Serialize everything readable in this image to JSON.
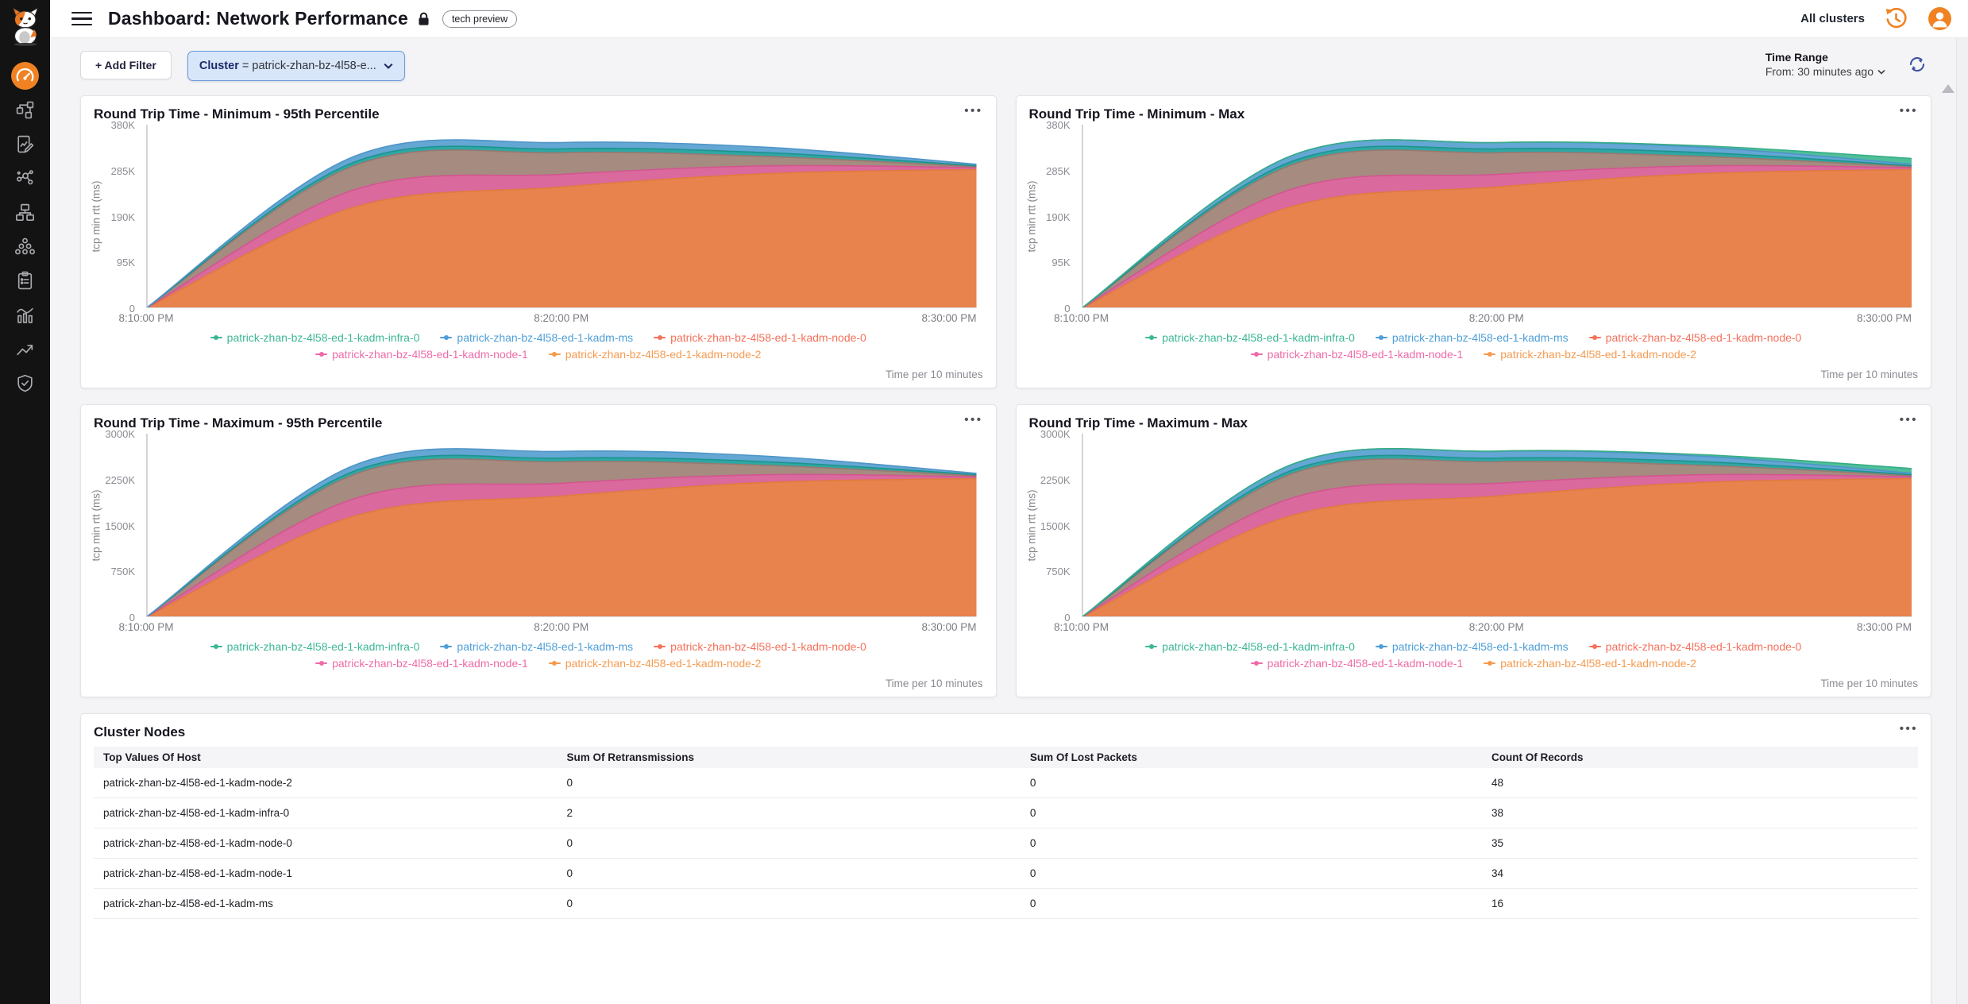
{
  "app": {
    "title": "Dashboard: Network Performance",
    "badge": "tech preview",
    "cluster_scope": "All clusters"
  },
  "sidebar": {
    "icons": [
      "mascot-logo",
      "gauge-dashboard",
      "topology",
      "form-edit",
      "molecule",
      "sitemap",
      "cluster-nodes",
      "clipboard",
      "analytics",
      "trend-up",
      "shield-check"
    ],
    "active_icon": "gauge-dashboard"
  },
  "filter_bar": {
    "add_filter_label": "+ Add Filter",
    "cluster_filter": {
      "field": "Cluster",
      "condition": "= patrick-zhan-bz-4l58-e..."
    },
    "time_range": {
      "label": "Time Range",
      "from": "From: 30 minutes ago"
    }
  },
  "icons": {
    "menu": "hamburger",
    "lock": "lock",
    "history": "clock-restore",
    "avatar": "person-circle",
    "refresh": "circular-arrows",
    "panel_menu": "ellipsis-h",
    "chevron": "chevron-down",
    "scroll_up": "triangle-up"
  },
  "colors": {
    "accent_orange": "#F08223",
    "filter_pill_bg": "#D8E6F9",
    "filter_pill_border": "#6D9CD8",
    "sidebar_bg": "#131313",
    "page_bg": "#F4F4F6"
  },
  "series_legend": [
    {
      "label": "patrick-zhan-bz-4l58-ed-1-kadm-infra-0",
      "color": "#3cb795"
    },
    {
      "label": "patrick-zhan-bz-4l58-ed-1-kadm-ms",
      "color": "#4e9fd8"
    },
    {
      "label": "patrick-zhan-bz-4l58-ed-1-kadm-node-0",
      "color": "#f4715b"
    },
    {
      "label": "patrick-zhan-bz-4l58-ed-1-kadm-node-1",
      "color": "#ef6ba8"
    },
    {
      "label": "patrick-zhan-bz-4l58-ed-1-kadm-node-2",
      "color": "#f59b50"
    }
  ],
  "charts": [
    {
      "type": "area",
      "title": "Round Trip Time - Minimum - 95th Percentile",
      "ylabel": "tcp min rtt (ms)",
      "ymax": 380,
      "value_unit": "K",
      "yticks": [
        "380K",
        "285K",
        "190K",
        "95K",
        "0"
      ],
      "xticks": [
        "8:10:00 PM",
        "8:20:00 PM",
        "8:30:00 PM"
      ],
      "x_samples": [
        "8:10 PM",
        "8:15 PM",
        "8:20 PM",
        "8:25 PM",
        "8:30 PM"
      ],
      "footer": "Time per 10 minutes",
      "bands": [
        {
          "series": "kadm-node-2",
          "fill": "#E8834E",
          "line": "#E07A3F",
          "values": [
            0,
            209,
            251,
            279,
            287
          ]
        },
        {
          "series": "kadm-node-1",
          "fill": "#DA699E",
          "line": "#D2568F",
          "values": [
            0,
            245,
            277,
            295,
            291
          ]
        },
        {
          "series": "kadm-node-0 overlap",
          "fill": "#A68B80",
          "line": "#98796F",
          "values": [
            0,
            295,
            322,
            314,
            293
          ]
        },
        {
          "series": "kadm-infra-0 overlap",
          "fill": "#2FA7A4",
          "line": "#1E938F",
          "values": [
            0,
            302,
            330,
            322,
            295
          ]
        },
        {
          "series": "kadm-ms overlap",
          "fill": "#64A7D4",
          "line": "#4E95C7",
          "values": [
            0,
            314,
            343,
            333,
            298
          ]
        }
      ]
    },
    {
      "type": "area",
      "title": "Round Trip Time - Minimum - Max",
      "ylabel": "tcp min rtt (ms)",
      "ymax": 380,
      "value_unit": "K",
      "yticks": [
        "380K",
        "285K",
        "190K",
        "95K",
        "0"
      ],
      "xticks": [
        "8:10:00 PM",
        "8:20:00 PM",
        "8:30:00 PM"
      ],
      "x_samples": [
        "8:10 PM",
        "8:15 PM",
        "8:20 PM",
        "8:25 PM",
        "8:30 PM"
      ],
      "footer": "Time per 10 minutes",
      "bands": [
        {
          "series": "kadm-node-2",
          "fill": "#E8834E",
          "line": "#E07A3F",
          "values": [
            0,
            209,
            251,
            279,
            287
          ]
        },
        {
          "series": "kadm-node-1",
          "fill": "#DA699E",
          "line": "#D2568F",
          "values": [
            0,
            245,
            277,
            295,
            291
          ]
        },
        {
          "series": "kadm-node-0 overlap",
          "fill": "#A68B80",
          "line": "#98796F",
          "values": [
            0,
            295,
            322,
            314,
            293
          ]
        },
        {
          "series": "kadm-infra-0 overlap",
          "fill": "#2FA7A4",
          "line": "#1E938F",
          "values": [
            0,
            302,
            330,
            322,
            295
          ]
        },
        {
          "series": "kadm-ms overlap",
          "fill": "#64A7D4",
          "line": "#4E95C7",
          "values": [
            0,
            314,
            343,
            333,
            298
          ]
        },
        {
          "series": "kadm-infra-0 top edge",
          "fill": "#4FBF9A",
          "line": "#37AC86",
          "values": [
            0,
            314,
            343,
            336,
            310
          ]
        }
      ]
    },
    {
      "type": "area",
      "title": "Round Trip Time - Maximum - 95th Percentile",
      "ylabel": "tcp min rtt (ms)",
      "ymax": 3000,
      "value_unit": "K",
      "yticks": [
        "3000K",
        "2250K",
        "1500K",
        "750K",
        "0"
      ],
      "xticks": [
        "8:10:00 PM",
        "8:20:00 PM",
        "8:30:00 PM"
      ],
      "x_samples": [
        "8:10 PM",
        "8:15 PM",
        "8:20 PM",
        "8:25 PM",
        "8:30 PM"
      ],
      "footer": "Time per 10 minutes",
      "bands": [
        {
          "series": "kadm-node-2",
          "fill": "#E8834E",
          "line": "#E07A3F",
          "values": [
            0,
            1650,
            1980,
            2205,
            2265
          ]
        },
        {
          "series": "kadm-node-1",
          "fill": "#DA699E",
          "line": "#D2568F",
          "values": [
            0,
            1935,
            2190,
            2330,
            2295
          ]
        },
        {
          "series": "kadm-node-0 overlap",
          "fill": "#A68B80",
          "line": "#98796F",
          "values": [
            0,
            2330,
            2540,
            2480,
            2312
          ]
        },
        {
          "series": "kadm-infra-0 overlap",
          "fill": "#2FA7A4",
          "line": "#1E938F",
          "values": [
            0,
            2385,
            2600,
            2540,
            2328
          ]
        },
        {
          "series": "kadm-ms overlap",
          "fill": "#64A7D4",
          "line": "#4E95C7",
          "values": [
            0,
            2480,
            2710,
            2630,
            2352
          ]
        }
      ]
    },
    {
      "type": "area",
      "title": "Round Trip Time - Maximum - Max",
      "ylabel": "tcp min rtt (ms)",
      "ymax": 3000,
      "value_unit": "K",
      "yticks": [
        "3000K",
        "2250K",
        "1500K",
        "750K",
        "0"
      ],
      "xticks": [
        "8:10:00 PM",
        "8:20:00 PM",
        "8:30:00 PM"
      ],
      "x_samples": [
        "8:10 PM",
        "8:15 PM",
        "8:20 PM",
        "8:25 PM",
        "8:30 PM"
      ],
      "footer": "Time per 10 minutes",
      "bands": [
        {
          "series": "kadm-node-2",
          "fill": "#E8834E",
          "line": "#E07A3F",
          "values": [
            0,
            1650,
            1980,
            2205,
            2265
          ]
        },
        {
          "series": "kadm-node-1",
          "fill": "#DA699E",
          "line": "#D2568F",
          "values": [
            0,
            1935,
            2190,
            2330,
            2295
          ]
        },
        {
          "series": "kadm-node-0 overlap",
          "fill": "#A68B80",
          "line": "#98796F",
          "values": [
            0,
            2330,
            2540,
            2480,
            2312
          ]
        },
        {
          "series": "kadm-infra-0 overlap",
          "fill": "#2FA7A4",
          "line": "#1E938F",
          "values": [
            0,
            2385,
            2600,
            2540,
            2328
          ]
        },
        {
          "series": "kadm-ms overlap",
          "fill": "#64A7D4",
          "line": "#4E95C7",
          "values": [
            0,
            2480,
            2710,
            2630,
            2352
          ]
        },
        {
          "series": "kadm-infra-0 top edge",
          "fill": "#4FBF9A",
          "line": "#37AC86",
          "values": [
            0,
            2480,
            2715,
            2655,
            2430
          ]
        }
      ]
    }
  ],
  "table": {
    "title": "Cluster Nodes",
    "headers": [
      "Top Values Of Host",
      "Sum Of Retransmissions",
      "Sum Of Lost Packets",
      "Count Of Records"
    ],
    "rows": [
      [
        "patrick-zhan-bz-4l58-ed-1-kadm-node-2",
        "0",
        "0",
        "48"
      ],
      [
        "patrick-zhan-bz-4l58-ed-1-kadm-infra-0",
        "2",
        "0",
        "38"
      ],
      [
        "patrick-zhan-bz-4l58-ed-1-kadm-node-0",
        "0",
        "0",
        "35"
      ],
      [
        "patrick-zhan-bz-4l58-ed-1-kadm-node-1",
        "0",
        "0",
        "34"
      ],
      [
        "patrick-zhan-bz-4l58-ed-1-kadm-ms",
        "0",
        "0",
        "16"
      ]
    ]
  }
}
